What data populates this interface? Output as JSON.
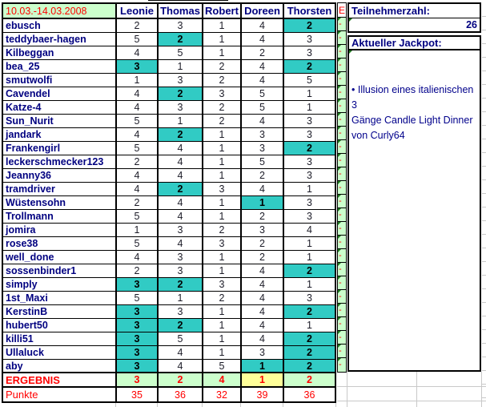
{
  "table": {
    "date_range": "10.03.-14.03.2008",
    "columns": [
      "Leonie",
      "Thomas",
      "Robert",
      "Doreen",
      "Thorsten"
    ],
    "rows": [
      {
        "name": "ebusch",
        "values": [
          2,
          3,
          1,
          4,
          2
        ],
        "hits": [
          4
        ]
      },
      {
        "name": "teddybaer-hagen",
        "values": [
          5,
          2,
          1,
          4,
          3
        ],
        "hits": [
          1
        ]
      },
      {
        "name": "Kilbeggan",
        "values": [
          4,
          5,
          1,
          2,
          3
        ],
        "hits": []
      },
      {
        "name": "bea_25",
        "values": [
          3,
          1,
          2,
          4,
          2
        ],
        "hits": [
          0,
          4
        ]
      },
      {
        "name": "smutwolfi",
        "values": [
          1,
          3,
          2,
          4,
          5
        ],
        "hits": []
      },
      {
        "name": "Cavendel",
        "values": [
          4,
          2,
          3,
          5,
          1
        ],
        "hits": [
          1
        ]
      },
      {
        "name": "Katze-4",
        "values": [
          4,
          3,
          2,
          5,
          1
        ],
        "hits": []
      },
      {
        "name": "Sun_Nurit",
        "values": [
          5,
          1,
          2,
          4,
          3
        ],
        "hits": []
      },
      {
        "name": "jandark",
        "values": [
          4,
          2,
          1,
          3,
          3
        ],
        "hits": [
          1
        ]
      },
      {
        "name": "Frankengirl",
        "values": [
          5,
          4,
          1,
          3,
          2
        ],
        "hits": [
          4
        ]
      },
      {
        "name": "leckerschmecker123",
        "values": [
          2,
          4,
          1,
          5,
          3
        ],
        "hits": []
      },
      {
        "name": "Jeanny36",
        "values": [
          4,
          4,
          1,
          2,
          3
        ],
        "hits": []
      },
      {
        "name": "tramdriver",
        "values": [
          4,
          2,
          3,
          4,
          1
        ],
        "hits": [
          1
        ]
      },
      {
        "name": "Wüstensohn",
        "values": [
          2,
          4,
          1,
          1,
          3
        ],
        "hits": [
          3
        ]
      },
      {
        "name": "Trollmann",
        "values": [
          5,
          4,
          1,
          2,
          3
        ],
        "hits": []
      },
      {
        "name": "jomira",
        "values": [
          1,
          3,
          2,
          3,
          4
        ],
        "hits": []
      },
      {
        "name": "rose38",
        "values": [
          5,
          4,
          3,
          2,
          1
        ],
        "hits": []
      },
      {
        "name": "well_done",
        "values": [
          4,
          3,
          1,
          2,
          1
        ],
        "hits": []
      },
      {
        "name": "sossenbinder1",
        "values": [
          2,
          3,
          1,
          4,
          2
        ],
        "hits": [
          4
        ]
      },
      {
        "name": "simply",
        "values": [
          3,
          2,
          3,
          4,
          1
        ],
        "hits": [
          0,
          1
        ]
      },
      {
        "name": "1st_Maxi",
        "values": [
          5,
          1,
          2,
          4,
          3
        ],
        "hits": []
      },
      {
        "name": "KerstinB",
        "values": [
          3,
          3,
          1,
          4,
          2
        ],
        "hits": [
          0,
          4
        ]
      },
      {
        "name": "hubert50",
        "values": [
          3,
          2,
          1,
          4,
          1
        ],
        "hits": [
          0,
          1
        ]
      },
      {
        "name": "killi51",
        "values": [
          3,
          5,
          1,
          4,
          2
        ],
        "hits": [
          0,
          4
        ]
      },
      {
        "name": "Ullaluck",
        "values": [
          3,
          4,
          1,
          3,
          2
        ],
        "hits": [
          0,
          4
        ]
      },
      {
        "name": "aby",
        "values": [
          3,
          4,
          5,
          1,
          2
        ],
        "hits": [
          0,
          3,
          4
        ]
      }
    ],
    "result_row": {
      "label": "ERGEBNIS",
      "values": [
        3,
        2,
        4,
        1,
        2
      ],
      "yellow_index": 3
    },
    "points_row": {
      "label": "Punkte",
      "values": [
        35,
        36,
        32,
        39,
        36
      ]
    }
  },
  "marker_column": {
    "header": "E",
    "cell_mark": "-"
  },
  "sidebar": {
    "participants_label": "Teilnehmerzahl:",
    "participants_value": "26",
    "jackpot_label": "Aktueller Jackpot:",
    "jackpot_text": "• Illusion eines italienischen 3\nGänge Candle Light Dinner\nvon Curly64"
  },
  "colors": {
    "hit_cell": "#31cbc4",
    "header_bg": "#ccffcc",
    "result_bg": "#ccffcc",
    "result_highlight_bg": "#ffff99",
    "marker_bg": "#ccffcc",
    "red_text": "#ff0000",
    "navy_text": "#000080"
  }
}
